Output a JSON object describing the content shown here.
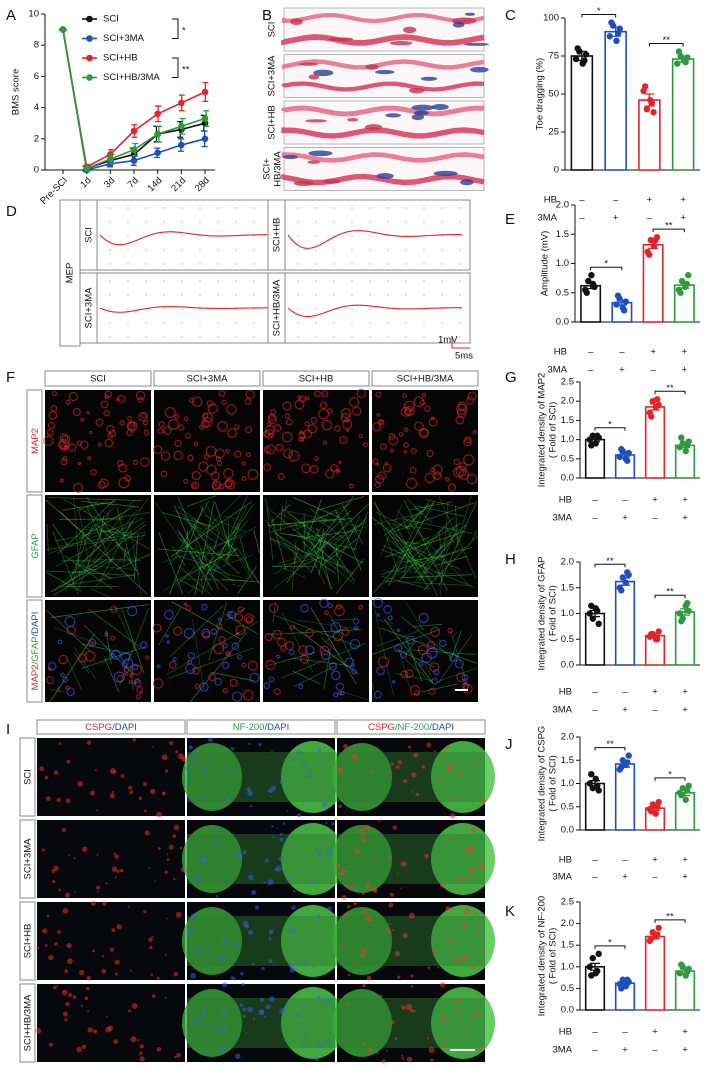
{
  "chart_data": [
    {
      "panel_label": "A",
      "type": "line",
      "ylabel": "BMS score",
      "categories": [
        "Pre-SCI",
        "1d",
        "3d",
        "7d",
        "14d",
        "21d",
        "28d"
      ],
      "ylim": [
        0,
        10
      ],
      "yticks": [
        0,
        2,
        4,
        6,
        8,
        10
      ],
      "series": [
        {
          "name": "SCI",
          "color": "#111111",
          "values": [
            9,
            0.1,
            0.6,
            1.0,
            2.3,
            2.6,
            3.0
          ],
          "errors": [
            0,
            0.15,
            0.3,
            0.4,
            0.5,
            0.5,
            0.5
          ]
        },
        {
          "name": "SCI+3MA",
          "color": "#1f4fbf",
          "values": [
            9,
            0,
            0.4,
            0.6,
            1.1,
            1.6,
            2.0
          ],
          "errors": [
            0,
            0.1,
            0.2,
            0.3,
            0.3,
            0.4,
            0.5
          ]
        },
        {
          "name": "SCI+HB",
          "color": "#e0262a",
          "values": [
            9,
            0.2,
            1.0,
            2.5,
            3.6,
            4.3,
            5.0
          ],
          "errors": [
            0,
            0.15,
            0.3,
            0.4,
            0.5,
            0.5,
            0.6
          ]
        },
        {
          "name": "SCI+HB/3MA",
          "color": "#2e9a3e",
          "values": [
            9,
            0.1,
            0.7,
            1.3,
            2.3,
            2.8,
            3.3
          ],
          "errors": [
            0,
            0.15,
            0.3,
            0.4,
            0.5,
            0.5,
            0.5
          ]
        }
      ],
      "significance": [
        "*",
        "**"
      ]
    },
    {
      "panel_label": "C",
      "type": "bar",
      "ylabel": "Toe  dragging (%)",
      "ylim": [
        0,
        100
      ],
      "yticks": [
        0,
        25,
        50,
        75,
        100
      ],
      "values": [
        75,
        91,
        46,
        73
      ],
      "errors": [
        3,
        3,
        4,
        2
      ],
      "colors": [
        "#111111",
        "#1f4fbf",
        "#e0262a",
        "#2e9a3e"
      ],
      "points": [
        [
          73,
          78,
          70,
          76,
          80,
          72
        ],
        [
          88,
          95,
          85,
          93,
          97,
          90
        ],
        [
          52,
          40,
          46,
          38,
          55,
          44
        ],
        [
          70,
          75,
          72,
          74,
          78,
          71
        ]
      ],
      "conditions": [
        {
          "name": "HB",
          "signs": [
            "–",
            "–",
            "+",
            "+"
          ]
        },
        {
          "name": "3MA",
          "signs": [
            "–",
            "+",
            "–",
            "+"
          ]
        }
      ],
      "significance": [
        "*",
        "**"
      ]
    },
    {
      "panel_label": "E",
      "type": "bar",
      "ylabel": "Amplitude (mV)",
      "ylim": [
        0,
        2
      ],
      "yticks": [
        {
          "value": 0,
          "label": "0.0"
        },
        0.5,
        {
          "value": 1,
          "label": "1.0"
        },
        1.5,
        {
          "value": 2,
          "label": "2.0"
        }
      ],
      "values": [
        0.62,
        0.33,
        1.32,
        0.63
      ],
      "errors": [
        0.05,
        0.04,
        0.06,
        0.05
      ],
      "colors": [
        "#111111",
        "#1f4fbf",
        "#e0262a",
        "#2e9a3e"
      ],
      "points": [
        [
          0.55,
          0.7,
          0.8,
          0.6,
          0.5,
          0.65
        ],
        [
          0.3,
          0.4,
          0.25,
          0.35,
          0.45,
          0.2
        ],
        [
          1.2,
          1.4,
          1.3,
          1.45,
          1.15,
          1.4
        ],
        [
          0.55,
          0.7,
          0.6,
          0.8,
          0.5,
          0.65
        ]
      ],
      "conditions": [
        {
          "name": "HB",
          "signs": [
            "–",
            "–",
            "+",
            "+"
          ]
        },
        {
          "name": "3MA",
          "signs": [
            "–",
            "+",
            "–",
            "+"
          ]
        }
      ],
      "significance": [
        "*",
        "**"
      ]
    },
    {
      "panel_label": "G",
      "type": "bar",
      "ylabel": [
        "Integrated density of MAP2",
        "( Fold of SCI)"
      ],
      "ylim": [
        0,
        2.5
      ],
      "yticks": [
        {
          "value": 0,
          "label": "0.0"
        },
        0.5,
        {
          "value": 1,
          "label": "1.0"
        },
        1.5,
        {
          "value": 2,
          "label": "2.0"
        },
        2.5
      ],
      "values": [
        1.0,
        0.6,
        1.85,
        0.85
      ],
      "errors": [
        0.06,
        0.05,
        0.08,
        0.06
      ],
      "colors": [
        "#111111",
        "#1f4fbf",
        "#e0262a",
        "#2e9a3e"
      ],
      "points": [
        [
          1.0,
          1.1,
          0.9,
          1.05,
          0.85,
          1.1
        ],
        [
          0.55,
          0.7,
          0.5,
          0.65,
          0.75,
          0.45
        ],
        [
          1.7,
          2.0,
          1.85,
          1.9,
          1.6,
          2.05
        ],
        [
          0.8,
          0.9,
          0.7,
          0.95,
          1.05,
          0.85
        ]
      ],
      "conditions": [
        {
          "name": "HB",
          "signs": [
            "–",
            "–",
            "+",
            "+"
          ]
        },
        {
          "name": "3MA",
          "signs": [
            "–",
            "+",
            "–",
            "+"
          ]
        }
      ],
      "significance": [
        "*",
        "**"
      ]
    },
    {
      "panel_label": "H",
      "type": "bar",
      "ylabel": [
        "Integrated density of GFAP",
        "( Fold of SCI)"
      ],
      "ylim": [
        0,
        2
      ],
      "yticks": [
        {
          "value": 0,
          "label": "0.0"
        },
        0.5,
        {
          "value": 1,
          "label": "1.0"
        },
        1.5,
        {
          "value": 2,
          "label": "2.0"
        }
      ],
      "values": [
        1.0,
        1.62,
        0.57,
        1.03
      ],
      "errors": [
        0.06,
        0.07,
        0.03,
        0.06
      ],
      "colors": [
        "#111111",
        "#1f4fbf",
        "#e0262a",
        "#2e9a3e"
      ],
      "points": [
        [
          1.0,
          0.9,
          1.1,
          0.8,
          1.15,
          1.05
        ],
        [
          1.5,
          1.7,
          1.6,
          1.75,
          1.45,
          1.8
        ],
        [
          0.55,
          0.6,
          0.5,
          0.65,
          0.6,
          0.5
        ],
        [
          1.0,
          0.9,
          1.15,
          1.05,
          0.85,
          1.2
        ]
      ],
      "conditions": [
        {
          "name": "HB",
          "signs": [
            "–",
            "–",
            "+",
            "+"
          ]
        },
        {
          "name": "3MA",
          "signs": [
            "–",
            "+",
            "–",
            "+"
          ]
        }
      ],
      "significance": [
        "**",
        "**"
      ]
    },
    {
      "panel_label": "J",
      "type": "bar",
      "ylabel": [
        "Integrated density of CSPG",
        "( Fold of SCI)"
      ],
      "ylim": [
        0,
        2
      ],
      "yticks": [
        {
          "value": 0,
          "label": "0.0"
        },
        0.5,
        {
          "value": 1,
          "label": "1.0"
        },
        1.5,
        {
          "value": 2,
          "label": "2.0"
        }
      ],
      "values": [
        1.0,
        1.42,
        0.47,
        0.8
      ],
      "errors": [
        0.06,
        0.07,
        0.05,
        0.06
      ],
      "colors": [
        "#111111",
        "#1f4fbf",
        "#e0262a",
        "#2e9a3e"
      ],
      "points": [
        [
          1.0,
          0.9,
          1.1,
          0.85,
          1.2,
          0.95
        ],
        [
          1.3,
          1.5,
          1.4,
          1.6,
          1.35,
          1.45
        ],
        [
          0.45,
          0.55,
          0.35,
          0.6,
          0.4,
          0.5
        ],
        [
          0.8,
          0.9,
          0.65,
          0.95,
          0.75,
          0.85
        ]
      ],
      "conditions": [
        {
          "name": "HB",
          "signs": [
            "–",
            "–",
            "+",
            "+"
          ]
        },
        {
          "name": "3MA",
          "signs": [
            "–",
            "+",
            "–",
            "+"
          ]
        }
      ],
      "significance": [
        "**",
        "*"
      ]
    },
    {
      "panel_label": "K",
      "type": "bar",
      "ylabel": [
        "Integrated density of NF-200",
        "( Fold of SCI)"
      ],
      "ylim": [
        0,
        2.5
      ],
      "yticks": [
        {
          "value": 0,
          "label": "0.0"
        },
        0.5,
        {
          "value": 1,
          "label": "1.0"
        },
        1.5,
        {
          "value": 2,
          "label": "2.0"
        },
        2.5
      ],
      "values": [
        1.0,
        0.62,
        1.7,
        0.9
      ],
      "errors": [
        0.08,
        0.04,
        0.05,
        0.05
      ],
      "colors": [
        "#111111",
        "#1f4fbf",
        "#e0262a",
        "#2e9a3e"
      ],
      "points": [
        [
          1.0,
          1.2,
          0.85,
          1.3,
          0.8,
          0.9
        ],
        [
          0.6,
          0.7,
          0.55,
          0.65,
          0.5,
          0.7
        ],
        [
          1.6,
          1.8,
          1.7,
          1.9,
          1.65,
          1.75
        ],
        [
          0.85,
          1.0,
          0.8,
          0.95,
          1.05,
          0.9
        ]
      ],
      "conditions": [
        {
          "name": "HB",
          "signs": [
            "–",
            "–",
            "+",
            "+"
          ]
        },
        {
          "name": "3MA",
          "signs": [
            "–",
            "+",
            "–",
            "+"
          ]
        }
      ],
      "significance": [
        "*",
        "**"
      ]
    }
  ],
  "images": {
    "B": {
      "panel_label": "B",
      "rows": [
        "SCI",
        "SCI+3MA",
        "SCI+HB",
        [
          "SCI+",
          "HB/3MA"
        ]
      ]
    },
    "D": {
      "panel_label": "D",
      "group_label": "MEP",
      "traces": [
        "SCI",
        "SCI+HB",
        "SCI+3MA",
        "SCI+HB/3MA"
      ],
      "scale": [
        "1mV",
        "5ms"
      ]
    },
    "F": {
      "panel_label": "F",
      "columns": [
        "SCI",
        "SCI+3MA",
        "SCI+HB",
        "SCI+HB/3MA"
      ],
      "rows": [
        [
          {
            "text": "MAP2",
            "color": "#e0262a"
          }
        ],
        [
          {
            "text": "GFAP",
            "color": "#2e9a3e"
          }
        ],
        [
          {
            "text": "MAP2",
            "color": "#e0262a"
          },
          {
            "text": "/GFAP",
            "color": "#2e9a3e"
          },
          {
            "text": "/DAPI",
            "color": "#1f4fbf"
          }
        ]
      ]
    },
    "I": {
      "panel_label": "I",
      "columns": [
        [
          {
            "text": "CSPG",
            "color": "#e0262a"
          },
          {
            "text": "/DAPI",
            "color": "#1f4fbf"
          }
        ],
        [
          {
            "text": "NF-200",
            "color": "#2e9a3e"
          },
          {
            "text": "/DAPI",
            "color": "#1f4fbf"
          }
        ],
        [
          {
            "text": "CSPG",
            "color": "#e0262a"
          },
          {
            "text": "/NF-200",
            "color": "#2e9a3e"
          },
          {
            "text": "/DAPI",
            "color": "#1f4fbf"
          }
        ]
      ],
      "rows": [
        "SCI",
        "SCI+3MA",
        "SCI+HB",
        "SCI+HB/3MA"
      ]
    }
  }
}
